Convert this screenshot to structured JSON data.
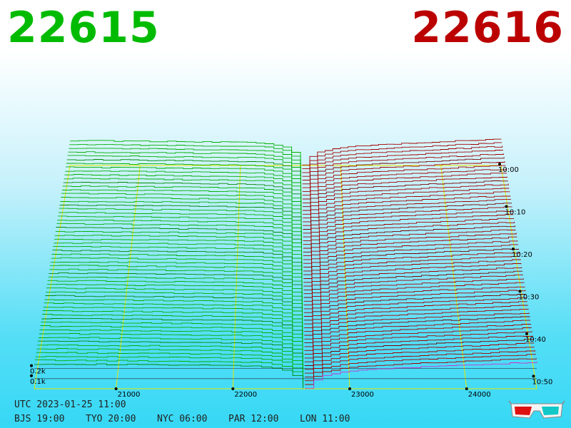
{
  "header": {
    "best_bid": "22615",
    "best_ask": "22616",
    "bid_color": "#00bb00",
    "ask_color": "#bb0000"
  },
  "clocks": {
    "utc": "UTC 2023-01-25 11:00",
    "zones": [
      {
        "label": "BJS 19:00"
      },
      {
        "label": "TYO 20:00"
      },
      {
        "label": "NYC 06:00"
      },
      {
        "label": "PAR 12:00"
      },
      {
        "label": "LON 11:00"
      }
    ]
  },
  "icons": {
    "glasses": "3d-glasses-icon"
  },
  "chart_data": {
    "type": "area",
    "subtype": "3d-order-book-depth-history",
    "price_axis": {
      "tick_labels": [
        "21000",
        "22000",
        "23000",
        "24000"
      ],
      "tick_values": [
        21000,
        22000,
        23000,
        24000
      ],
      "range": [
        20300,
        24600
      ]
    },
    "depth_axis": {
      "tick_labels": [
        "0.1k",
        "0.2k"
      ],
      "tick_values": [
        100,
        200
      ]
    },
    "time_axis": {
      "tick_labels": [
        "10:00",
        "10:10",
        "10:20",
        "10:30",
        "10:40",
        "10:50"
      ],
      "snapshots": 60
    },
    "series": [
      {
        "name": "",
        "side": "bid",
        "color": "#00a000",
        "price_points": [
          20300,
          20600,
          21000,
          21400,
          21800,
          22000,
          22200,
          22400,
          22500,
          22600
        ],
        "cumulative_depth": [
          250,
          248,
          244,
          240,
          235,
          232,
          228,
          200,
          150,
          5
        ]
      },
      {
        "name": "",
        "side": "ask",
        "color": "#aa0000",
        "price_points": [
          22616,
          22650,
          22750,
          22950,
          23150,
          23500,
          24000,
          24600
        ],
        "cumulative_depth": [
          5,
          60,
          130,
          175,
          195,
          215,
          240,
          270
        ]
      }
    ],
    "legend": "none",
    "grid": true
  }
}
